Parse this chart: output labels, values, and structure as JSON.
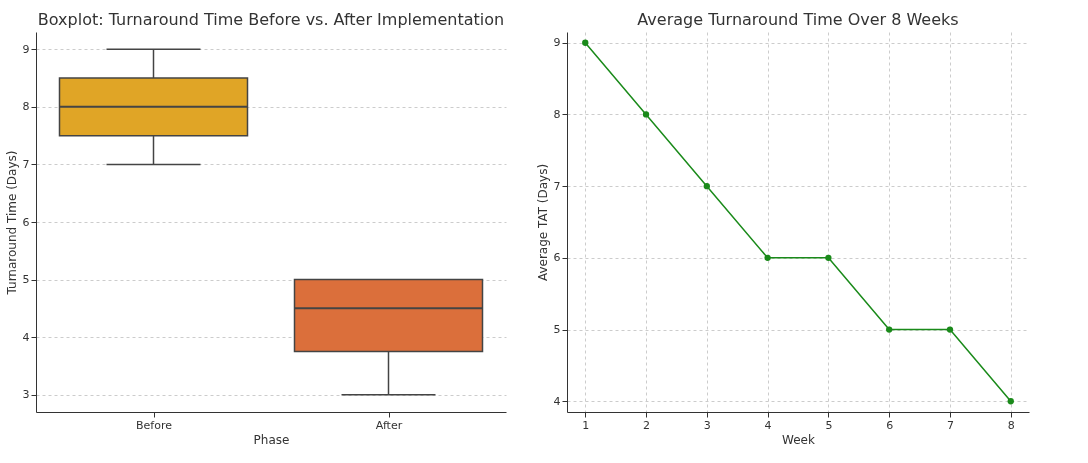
{
  "chart_data": [
    {
      "type": "box",
      "title": "Boxplot: Turnaround Time Before vs. After Implementation",
      "xlabel": "Phase",
      "ylabel": "Turnaround Time (Days)",
      "categories": [
        "Before",
        "After"
      ],
      "colors": [
        "#e0a526",
        "#db6f3b"
      ],
      "boxes": [
        {
          "low": 7,
          "q1": 7.5,
          "median": 8,
          "q3": 8.5,
          "high": 9
        },
        {
          "low": 3,
          "q1": 3.75,
          "median": 4.5,
          "q3": 5,
          "high": 5
        }
      ],
      "ylim": [
        2.7,
        9.3
      ],
      "yticks": [
        3,
        4,
        5,
        6,
        7,
        8,
        9
      ],
      "grid": "y"
    },
    {
      "type": "line",
      "title": "Average Turnaround Time Over 8 Weeks",
      "xlabel": "Week",
      "ylabel": "Average TAT (Days)",
      "x": [
        1,
        2,
        3,
        4,
        5,
        6,
        7,
        8
      ],
      "series": [
        {
          "color": "#1a8a1a",
          "values": [
            9,
            8,
            7,
            6,
            6,
            5,
            5,
            4
          ]
        }
      ],
      "xlim": [
        0.7,
        8.3
      ],
      "xticks": [
        1,
        2,
        3,
        4,
        5,
        6,
        7,
        8
      ],
      "ylim": [
        3.85,
        9.15
      ],
      "yticks": [
        4,
        5,
        6,
        7,
        8,
        9
      ],
      "grid": true,
      "marker": "circle",
      "line_style": "solid"
    }
  ]
}
